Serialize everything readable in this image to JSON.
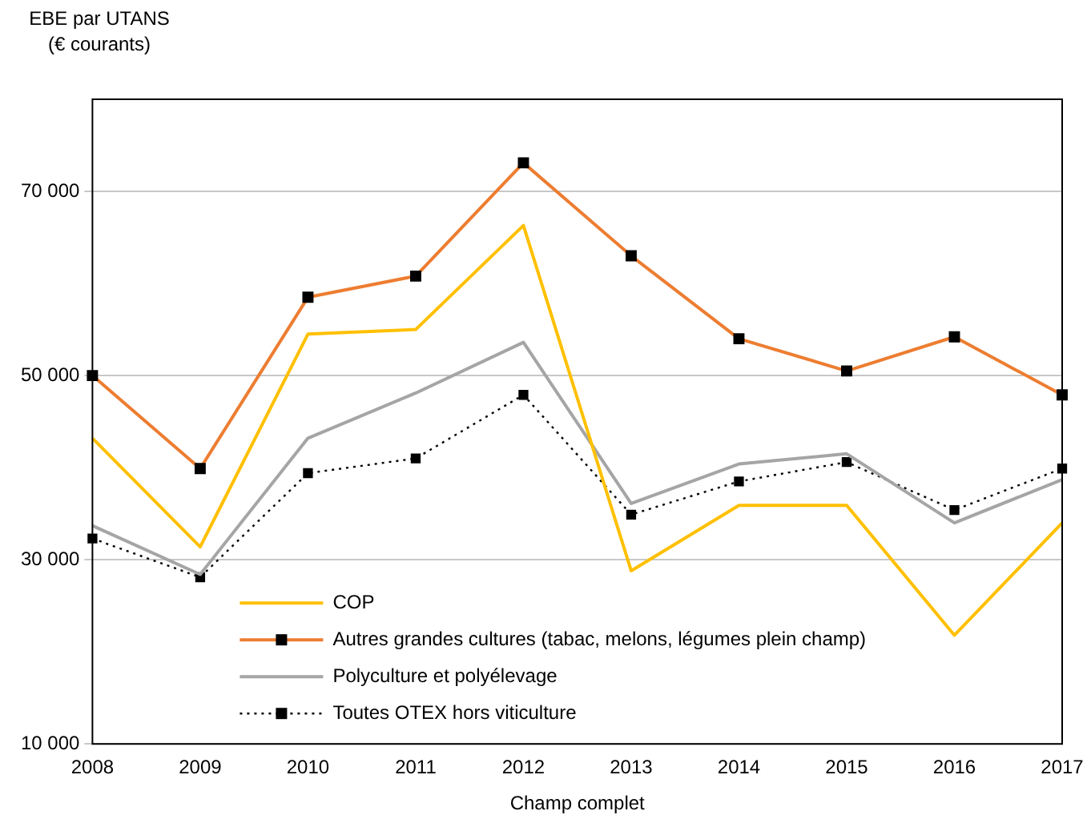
{
  "chart_data": {
    "type": "line",
    "ylabel": "EBE par UTANS\n(€ courants)",
    "xlabel": "Champ complet",
    "categories": [
      "2008",
      "2009",
      "2010",
      "2011",
      "2012",
      "2013",
      "2014",
      "2015",
      "2016",
      "2017"
    ],
    "series": [
      {
        "name": "COP",
        "color": "#ffc000",
        "marker": "none",
        "line_style": "solid",
        "values": [
          43200,
          31400,
          54500,
          55000,
          66300,
          28800,
          35900,
          35900,
          21800,
          34000
        ]
      },
      {
        "name": "Autres grandes cultures (tabac, melons, légumes plein champ)",
        "color": "#ed7d31",
        "marker": "square",
        "line_style": "solid",
        "values": [
          50000,
          39900,
          58500,
          60800,
          73100,
          63000,
          54000,
          50500,
          54200,
          47900
        ]
      },
      {
        "name": "Polyculture et polyélevage",
        "color": "#a5a5a5",
        "marker": "none",
        "line_style": "solid",
        "values": [
          33700,
          28400,
          43200,
          48100,
          53600,
          36100,
          40400,
          41500,
          34000,
          38700
        ]
      },
      {
        "name": "Toutes OTEX hors viticulture",
        "color": "#000000",
        "marker": "square",
        "line_style": "dotted",
        "values": [
          32300,
          28100,
          39400,
          41000,
          47900,
          34900,
          38500,
          40600,
          35400,
          39900
        ]
      }
    ],
    "ylim": [
      10000,
      80000
    ],
    "yticks": [
      {
        "value": 10000,
        "label": "10 000"
      },
      {
        "value": 30000,
        "label": "30 000"
      },
      {
        "value": 50000,
        "label": "50 000"
      },
      {
        "value": 70000,
        "label": "70 000"
      }
    ],
    "grid": "y",
    "legend": "bottom left"
  }
}
